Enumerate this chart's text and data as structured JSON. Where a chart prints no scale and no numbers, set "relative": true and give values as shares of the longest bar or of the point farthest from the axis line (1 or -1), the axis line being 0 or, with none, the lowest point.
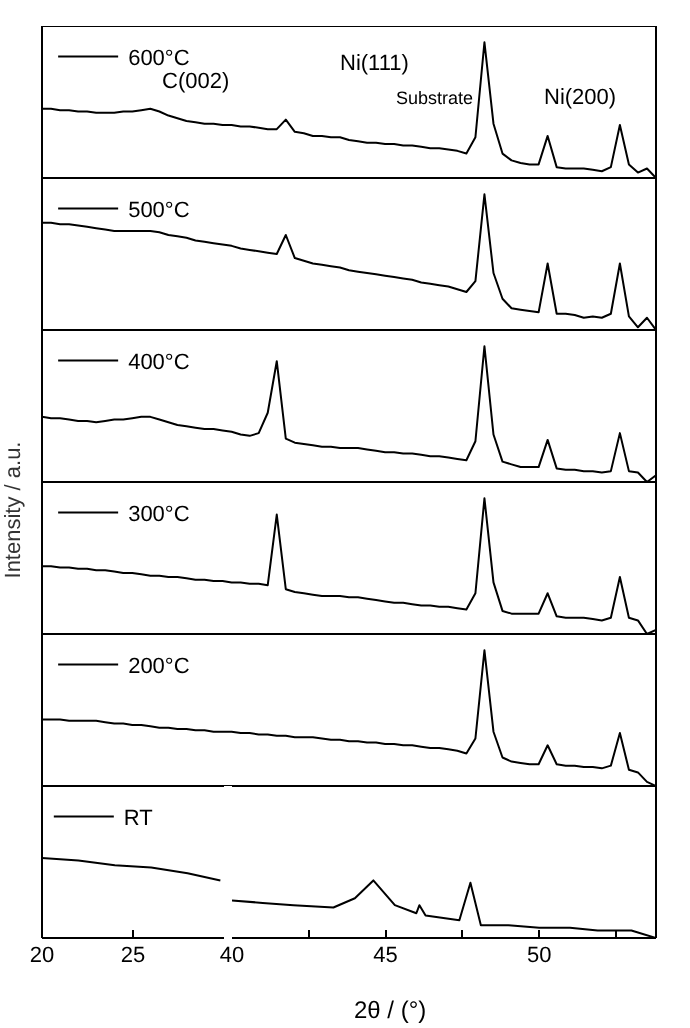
{
  "chart_data": [
    {
      "type": "line",
      "relative": true,
      "legend": "top left",
      "annotations": [
        "C(002)",
        "Ni(111)",
        "Substrate",
        "Ni(200)"
      ],
      "categories": [
        null,
        null,
        null,
        null,
        null,
        null,
        null,
        null,
        null,
        null,
        null,
        null,
        null,
        null,
        null,
        null,
        null,
        null,
        null,
        null,
        null,
        null,
        null,
        null,
        null,
        null,
        null,
        null,
        null,
        null,
        null,
        null,
        null,
        null,
        null,
        null,
        null,
        null,
        null,
        null,
        null,
        null,
        null,
        null,
        null,
        null,
        null,
        null,
        null,
        null,
        null,
        null,
        null,
        null,
        null,
        null,
        null,
        null,
        null,
        null,
        null,
        null,
        null,
        null,
        null,
        null,
        null,
        null,
        null
      ],
      "series": [
        {
          "name": "600°C",
          "color": "#000000",
          "values": [
            0.51,
            0.51,
            0.5,
            0.5,
            0.49,
            0.49,
            0.48,
            0.48,
            0.48,
            0.49,
            0.49,
            0.5,
            0.51,
            0.49,
            0.46,
            0.44,
            0.42,
            0.41,
            0.4,
            0.4,
            0.39,
            0.39,
            0.38,
            0.38,
            0.37,
            0.36,
            0.36,
            0.43,
            0.34,
            0.33,
            0.31,
            0.31,
            0.3,
            0.3,
            0.28,
            0.27,
            0.26,
            0.26,
            0.25,
            0.25,
            0.24,
            0.24,
            0.23,
            0.22,
            0.22,
            0.21,
            0.2,
            0.18,
            0.3,
            1,
            0.4,
            0.18,
            0.13,
            0.11,
            0.1,
            0.1,
            0.31,
            0.08,
            0.07,
            0.07,
            0.07,
            0.06,
            0.05,
            0.08,
            0.39,
            0.1,
            0.04,
            0.07,
            0
          ]
        }
      ]
    },
    {
      "type": "line",
      "relative": true,
      "legend": "top left",
      "categories": [
        null,
        null,
        null,
        null,
        null,
        null,
        null,
        null,
        null,
        null,
        null,
        null,
        null,
        null,
        null,
        null,
        null,
        null,
        null,
        null,
        null,
        null,
        null,
        null,
        null,
        null,
        null,
        null,
        null,
        null,
        null,
        null,
        null,
        null,
        null,
        null,
        null,
        null,
        null,
        null,
        null,
        null,
        null,
        null,
        null,
        null,
        null,
        null,
        null,
        null,
        null,
        null,
        null,
        null,
        null,
        null,
        null,
        null,
        null,
        null,
        null,
        null,
        null,
        null,
        null,
        null,
        null,
        null,
        null
      ],
      "series": [
        {
          "name": "500°C",
          "color": "#000000",
          "values": [
            0.79,
            0.79,
            0.78,
            0.78,
            0.77,
            0.76,
            0.75,
            0.74,
            0.73,
            0.73,
            0.73,
            0.73,
            0.73,
            0.72,
            0.7,
            0.69,
            0.68,
            0.66,
            0.65,
            0.64,
            0.63,
            0.62,
            0.6,
            0.59,
            0.58,
            0.57,
            0.56,
            0.7,
            0.53,
            0.51,
            0.49,
            0.48,
            0.47,
            0.46,
            0.44,
            0.43,
            0.42,
            0.41,
            0.4,
            0.39,
            0.38,
            0.37,
            0.35,
            0.34,
            0.33,
            0.32,
            0.3,
            0.28,
            0.36,
            1,
            0.42,
            0.23,
            0.16,
            0.15,
            0.14,
            0.13,
            0.49,
            0.12,
            0.12,
            0.11,
            0.09,
            0.1,
            0.09,
            0.12,
            0.49,
            0.1,
            0.02,
            0.09,
            0
          ]
        }
      ]
    },
    {
      "type": "line",
      "relative": true,
      "legend": "top left",
      "ylabel": "Intensity / a.u.",
      "categories": [
        null,
        null,
        null,
        null,
        null,
        null,
        null,
        null,
        null,
        null,
        null,
        null,
        null,
        null,
        null,
        null,
        null,
        null,
        null,
        null,
        null,
        null,
        null,
        null,
        null,
        null,
        null,
        null,
        null,
        null,
        null,
        null,
        null,
        null,
        null,
        null,
        null,
        null,
        null,
        null,
        null,
        null,
        null,
        null,
        null,
        null,
        null,
        null,
        null,
        null,
        null,
        null,
        null,
        null,
        null,
        null,
        null,
        null,
        null,
        null,
        null,
        null,
        null,
        null,
        null,
        null,
        null,
        null,
        null
      ],
      "series": [
        {
          "name": "400°C",
          "color": "#000000",
          "values": [
            0.48,
            0.47,
            0.47,
            0.46,
            0.45,
            0.45,
            0.44,
            0.45,
            0.46,
            0.46,
            0.47,
            0.48,
            0.48,
            0.46,
            0.44,
            0.42,
            0.41,
            0.4,
            0.39,
            0.39,
            0.38,
            0.37,
            0.35,
            0.34,
            0.36,
            0.51,
            0.89,
            0.32,
            0.29,
            0.28,
            0.27,
            0.26,
            0.26,
            0.25,
            0.25,
            0.25,
            0.24,
            0.23,
            0.22,
            0.22,
            0.21,
            0.21,
            0.2,
            0.19,
            0.19,
            0.18,
            0.17,
            0.16,
            0.3,
            1,
            0.35,
            0.15,
            0.13,
            0.11,
            0.11,
            0.11,
            0.31,
            0.1,
            0.09,
            0.09,
            0.08,
            0.08,
            0.07,
            0.08,
            0.36,
            0.08,
            0.07,
            0,
            0.05
          ]
        }
      ]
    },
    {
      "type": "line",
      "relative": true,
      "legend": "top left",
      "categories": [
        null,
        null,
        null,
        null,
        null,
        null,
        null,
        null,
        null,
        null,
        null,
        null,
        null,
        null,
        null,
        null,
        null,
        null,
        null,
        null,
        null,
        null,
        null,
        null,
        null,
        null,
        null,
        null,
        null,
        null,
        null,
        null,
        null,
        null,
        null,
        null,
        null,
        null,
        null,
        null,
        null,
        null,
        null,
        null,
        null,
        null,
        null,
        null,
        null,
        null,
        null,
        null,
        null,
        null,
        null,
        null,
        null,
        null,
        null,
        null,
        null,
        null,
        null,
        null,
        null,
        null,
        null,
        null,
        null
      ],
      "series": [
        {
          "name": "300°C",
          "color": "#000000",
          "values": [
            0.5,
            0.5,
            0.49,
            0.49,
            0.48,
            0.48,
            0.47,
            0.47,
            0.46,
            0.45,
            0.45,
            0.44,
            0.43,
            0.43,
            0.42,
            0.42,
            0.41,
            0.4,
            0.4,
            0.39,
            0.39,
            0.38,
            0.38,
            0.37,
            0.37,
            0.36,
            0.88,
            0.33,
            0.31,
            0.3,
            0.29,
            0.28,
            0.28,
            0.28,
            0.27,
            0.27,
            0.26,
            0.25,
            0.24,
            0.23,
            0.23,
            0.22,
            0.21,
            0.21,
            0.2,
            0.2,
            0.19,
            0.18,
            0.3,
            1,
            0.38,
            0.17,
            0.15,
            0.15,
            0.15,
            0.15,
            0.3,
            0.13,
            0.12,
            0.12,
            0.12,
            0.11,
            0.1,
            0.12,
            0.42,
            0.12,
            0.1,
            0,
            0.03
          ]
        }
      ]
    },
    {
      "type": "line",
      "relative": true,
      "legend": "top left",
      "categories": [
        null,
        null,
        null,
        null,
        null,
        null,
        null,
        null,
        null,
        null,
        null,
        null,
        null,
        null,
        null,
        null,
        null,
        null,
        null,
        null,
        null,
        null,
        null,
        null,
        null,
        null,
        null,
        null,
        null,
        null,
        null,
        null,
        null,
        null,
        null,
        null,
        null,
        null,
        null,
        null,
        null,
        null,
        null,
        null,
        null,
        null,
        null,
        null,
        null,
        null,
        null,
        null,
        null,
        null,
        null,
        null,
        null,
        null,
        null,
        null,
        null,
        null,
        null,
        null,
        null,
        null,
        null,
        null,
        null
      ],
      "series": [
        {
          "name": "200°C",
          "color": "#000000",
          "values": [
            0.49,
            0.49,
            0.49,
            0.48,
            0.48,
            0.48,
            0.48,
            0.47,
            0.46,
            0.46,
            0.45,
            0.45,
            0.44,
            0.43,
            0.43,
            0.42,
            0.42,
            0.41,
            0.41,
            0.4,
            0.4,
            0.4,
            0.39,
            0.39,
            0.38,
            0.38,
            0.37,
            0.37,
            0.36,
            0.36,
            0.36,
            0.35,
            0.34,
            0.34,
            0.33,
            0.33,
            0.32,
            0.32,
            0.31,
            0.31,
            0.3,
            0.3,
            0.29,
            0.28,
            0.28,
            0.27,
            0.26,
            0.24,
            0.35,
            1,
            0.4,
            0.21,
            0.18,
            0.17,
            0.16,
            0.16,
            0.3,
            0.16,
            0.15,
            0.15,
            0.14,
            0.14,
            0.13,
            0.15,
            0.39,
            0.12,
            0.1,
            0.03,
            0
          ]
        }
      ]
    },
    {
      "type": "line",
      "xlim": [
        20,
        30
      ],
      "xticks": [
        20,
        25
      ],
      "relative": true,
      "legend": "top left",
      "series": [
        {
          "name": "RT",
          "color": "#000000",
          "x": [
            20,
            22,
            24,
            26,
            28,
            29.8
          ],
          "values": [
            1,
            0.97,
            0.91,
            0.88,
            0.81,
            0.72
          ]
        }
      ]
    },
    {
      "type": "line",
      "xlim": [
        40,
        53.8
      ],
      "xticks": [
        40,
        {
          "value": 42.5,
          "label": null
        },
        45,
        {
          "value": 47.5,
          "label": null
        },
        50,
        {
          "value": 52.5,
          "label": null
        }
      ],
      "xlabel": "2θ / (°)",
      "relative": true,
      "series": [
        {
          "color": "#000000",
          "x": [
            40,
            41,
            42,
            43.3,
            44,
            44.6,
            45.3,
            46,
            46.1,
            46.3,
            47.4,
            47.76,
            48.1,
            49,
            50,
            51,
            51.9,
            53,
            53.8
          ],
          "values": [
            0.65,
            0.61,
            0.57,
            0.53,
            0.69,
            1,
            0.57,
            0.43,
            0.57,
            0.39,
            0.31,
            0.96,
            0.22,
            0.22,
            0.18,
            0.18,
            0.13,
            0.13,
            0
          ]
        }
      ]
    }
  ]
}
